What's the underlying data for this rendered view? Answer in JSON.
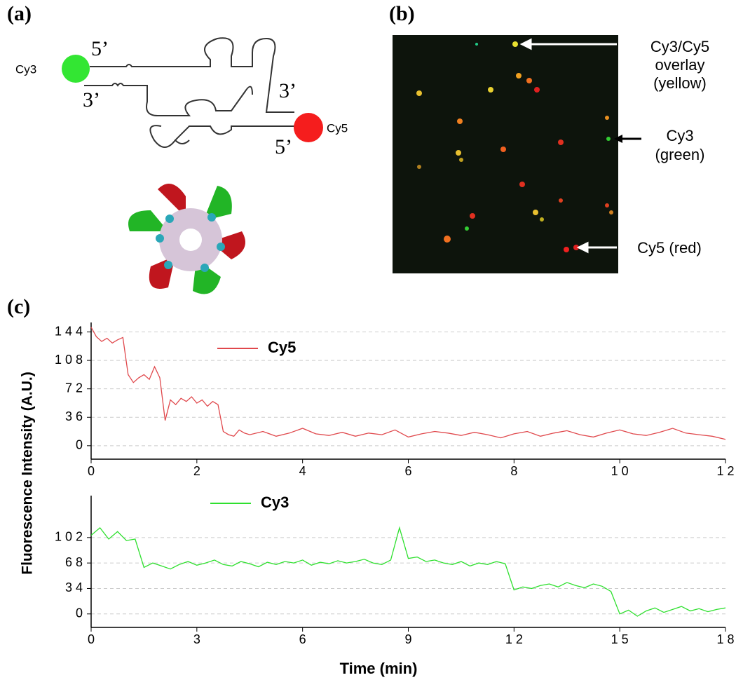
{
  "panels": {
    "a": {
      "label": "(a)",
      "cy3": "Cy3",
      "cy5": "Cy5",
      "top_left": "5’",
      "bottom_left": "3’",
      "top_right": "3’",
      "bottom_right": "5’"
    },
    "b": {
      "label": "(b)",
      "overlay": [
        "Cy3/Cy5",
        "overlay",
        "(yellow)"
      ],
      "green": [
        "Cy3",
        "(green)"
      ],
      "red": "Cy5 (red)"
    },
    "c": {
      "label": "(c)"
    }
  },
  "chart_data": [
    {
      "type": "line",
      "ylabel": "Fluorescence Intensity (A.U.)",
      "x": [
        0,
        0.1,
        0.2,
        0.3,
        0.4,
        0.5,
        0.6,
        0.7,
        0.8,
        0.9,
        1.0,
        1.1,
        1.2,
        1.3,
        1.4,
        1.5,
        1.6,
        1.7,
        1.8,
        1.9,
        2.0,
        2.1,
        2.2,
        2.3,
        2.4,
        2.5,
        2.6,
        2.7,
        2.8,
        2.9,
        3.0,
        3.25,
        3.5,
        3.75,
        4.0,
        4.25,
        4.5,
        4.75,
        5.0,
        5.25,
        5.5,
        5.75,
        6.0,
        6.25,
        6.5,
        6.75,
        7.0,
        7.25,
        7.5,
        7.75,
        8.0,
        8.25,
        8.5,
        8.75,
        9.0,
        9.25,
        9.5,
        9.75,
        10.0,
        10.25,
        10.5,
        10.75,
        11.0,
        11.25,
        11.5,
        11.75,
        12.0
      ],
      "series": [
        {
          "name": "Cy5",
          "color": "#e0484c",
          "values": [
            150,
            138,
            132,
            136,
            130,
            134,
            137,
            90,
            80,
            86,
            90,
            84,
            100,
            86,
            32,
            58,
            52,
            60,
            56,
            62,
            54,
            58,
            50,
            56,
            52,
            18,
            14,
            12,
            20,
            16,
            14,
            18,
            12,
            16,
            22,
            15,
            13,
            17,
            12,
            16,
            14,
            20,
            11,
            15,
            18,
            16,
            13,
            17,
            14,
            10,
            15,
            18,
            12,
            16,
            19,
            14,
            11,
            16,
            20,
            15,
            13,
            17,
            22,
            16,
            14,
            12,
            8
          ]
        }
      ],
      "xlim": [
        0,
        12
      ],
      "xticks": [
        0,
        2,
        4,
        6,
        8,
        {
          "value": 10,
          "label": "1 0"
        },
        {
          "value": 12,
          "label": "1 2"
        }
      ],
      "ylim": [
        -17,
        156
      ],
      "yticks": [
        0,
        {
          "value": 36,
          "label": "3 6"
        },
        {
          "value": 72,
          "label": "7 2"
        },
        {
          "value": 108,
          "label": "1 0 8"
        },
        {
          "value": 144,
          "label": "1 4 4"
        }
      ],
      "grid": true
    },
    {
      "type": "line",
      "xlabel": "Time (min)",
      "x": [
        0,
        0.25,
        0.5,
        0.75,
        1,
        1.25,
        1.5,
        1.75,
        2,
        2.25,
        2.5,
        2.75,
        3,
        3.25,
        3.5,
        3.75,
        4,
        4.25,
        4.5,
        4.75,
        5,
        5.25,
        5.5,
        5.75,
        6,
        6.25,
        6.5,
        6.75,
        7,
        7.25,
        7.5,
        7.75,
        8,
        8.25,
        8.5,
        8.75,
        9,
        9.25,
        9.5,
        9.75,
        10,
        10.25,
        10.5,
        10.75,
        11,
        11.25,
        11.5,
        11.75,
        12,
        12.25,
        12.5,
        12.75,
        13,
        13.25,
        13.5,
        13.75,
        14,
        14.25,
        14.5,
        14.75,
        15,
        15.25,
        15.5,
        15.75,
        16,
        16.25,
        16.5,
        16.75,
        17,
        17.25,
        17.5,
        17.75,
        18
      ],
      "series": [
        {
          "name": "Cy3",
          "color": "#2ee02e",
          "values": [
            105,
            115,
            100,
            110,
            98,
            100,
            62,
            68,
            64,
            60,
            66,
            70,
            65,
            68,
            72,
            66,
            64,
            70,
            67,
            63,
            69,
            66,
            70,
            68,
            72,
            65,
            69,
            67,
            71,
            68,
            70,
            73,
            68,
            66,
            72,
            115,
            74,
            76,
            70,
            72,
            68,
            66,
            70,
            64,
            68,
            66,
            70,
            67,
            32,
            36,
            34,
            38,
            40,
            36,
            42,
            38,
            35,
            40,
            37,
            30,
            0,
            5,
            -3,
            4,
            8,
            2,
            6,
            10,
            4,
            7,
            3,
            6,
            8
          ]
        }
      ],
      "xlim": [
        0,
        18
      ],
      "xticks": [
        0,
        3,
        6,
        9,
        {
          "value": 12,
          "label": "1 2"
        },
        {
          "value": 15,
          "label": "1 5"
        },
        {
          "value": 18,
          "label": "1 8"
        }
      ],
      "ylim": [
        -18,
        158
      ],
      "yticks": [
        0,
        {
          "value": 34,
          "label": "3 4"
        },
        {
          "value": 68,
          "label": "6 8"
        },
        {
          "value": 102,
          "label": "1 0 2"
        }
      ],
      "grid": true
    }
  ]
}
